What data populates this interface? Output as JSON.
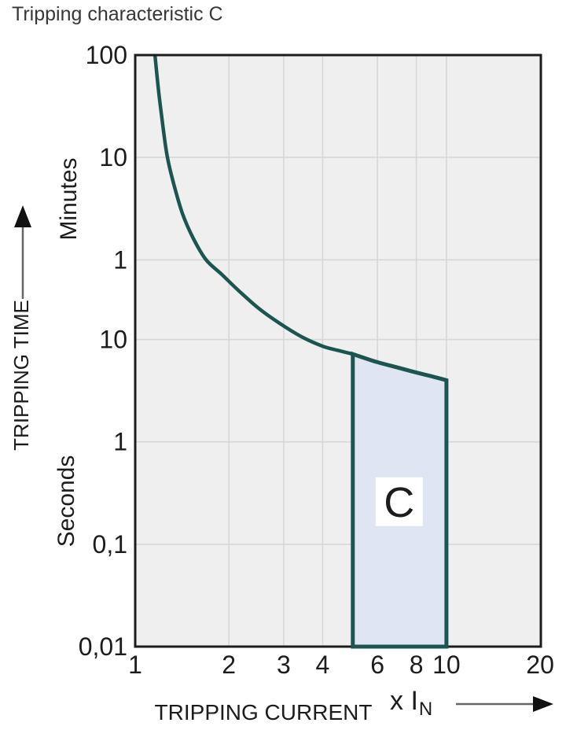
{
  "title": "Tripping characteristic C",
  "axis_labels": {
    "y_title": "TRIPPING TIME",
    "y_unit_upper": "Minutes",
    "y_unit_lower": "Seconds",
    "x_title": "TRIPPING CURRENT",
    "x_unit": "x I",
    "x_unit_sub": "N"
  },
  "colors": {
    "curve": "#1A564F",
    "region_fill": "#DFE5F2",
    "plot_background": "#EFEFEF",
    "gridline": "#D7D7D7",
    "border": "#1C1C1C",
    "text": "#1C1C1C",
    "arrow_shaft": "#666666",
    "arrow_head": "#111111",
    "region_label_bg": "#FFFFFF"
  },
  "chart_data": {
    "type": "line",
    "title": "Tripping characteristic C",
    "x_scale": "log",
    "y_scale": "log",
    "x_range": [
      1,
      20.1
    ],
    "y_range_seconds": [
      0.01,
      6000
    ],
    "x_ticks": [
      {
        "v": 1,
        "label": "1"
      },
      {
        "v": 2,
        "label": "2"
      },
      {
        "v": 3,
        "label": "3"
      },
      {
        "v": 4,
        "label": "4"
      },
      {
        "v": 6,
        "label": "6"
      },
      {
        "v": 8,
        "label": "8"
      },
      {
        "v": 10,
        "label": "10"
      },
      {
        "v": 20,
        "label": "20"
      }
    ],
    "y_ticks": [
      {
        "t": 6000,
        "label": "100",
        "unit": "minutes"
      },
      {
        "t": 600,
        "label": "10",
        "unit": "minutes"
      },
      {
        "t": 60,
        "label": "1",
        "unit": "minutes"
      },
      {
        "t": 10,
        "label": "10",
        "unit": "seconds"
      },
      {
        "t": 1,
        "label": "1",
        "unit": "seconds"
      },
      {
        "t": 0.1,
        "label": "0,1",
        "unit": "seconds"
      },
      {
        "t": 0.01,
        "label": "0,01",
        "unit": "seconds"
      }
    ],
    "x_gridlines": [
      2,
      3,
      4,
      6,
      8,
      10
    ],
    "y_gridlines_seconds": [
      600,
      60,
      10,
      1,
      0.1
    ],
    "series": [
      {
        "name": "thermal-trip-curve",
        "points_multiple_of_In_vs_seconds": [
          [
            1.157,
            6000
          ],
          [
            1.19,
            2600
          ],
          [
            1.23,
            1150
          ],
          [
            1.269,
            600
          ],
          [
            1.33,
            330
          ],
          [
            1.42,
            168
          ],
          [
            1.54,
            96
          ],
          [
            1.69,
            60
          ],
          [
            1.9,
            43
          ],
          [
            2.15,
            30
          ],
          [
            2.5,
            20
          ],
          [
            2.95,
            14
          ],
          [
            3.45,
            10.5
          ],
          [
            4.0,
            8.6
          ],
          [
            4.5,
            7.8
          ],
          [
            5.0,
            7.2
          ]
        ]
      }
    ],
    "region": {
      "label": "C",
      "x_from": 5,
      "x_to": 10,
      "t_bottom": 0.01,
      "top_points_multiple_of_In_vs_seconds": [
        [
          5.0,
          7.2
        ],
        [
          6.0,
          6.0
        ],
        [
          7.0,
          5.3
        ],
        [
          8.0,
          4.75
        ],
        [
          9.0,
          4.35
        ],
        [
          10.0,
          4.0
        ]
      ],
      "label_pos": [
        7.05,
        0.26
      ]
    }
  }
}
